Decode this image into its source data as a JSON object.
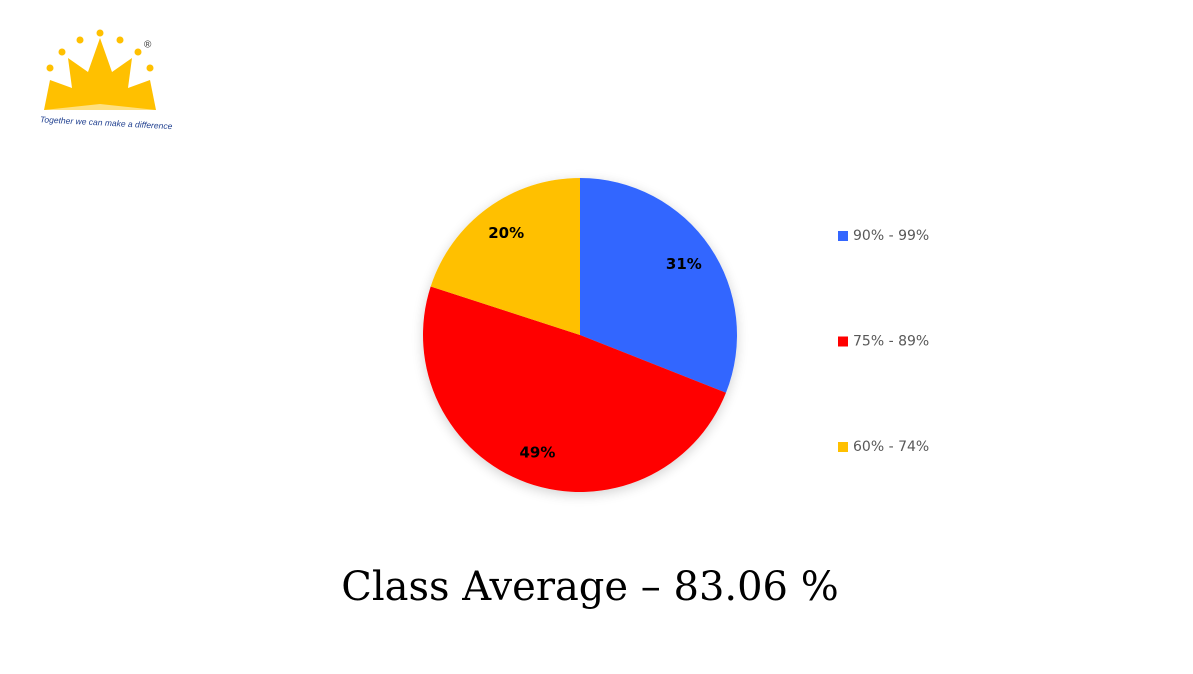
{
  "logo": {
    "mark": "®",
    "tagline": "Together we can make a difference"
  },
  "chart_data": {
    "type": "pie",
    "categories": [
      "90% - 99%",
      "75% - 89%",
      "60% - 74%"
    ],
    "values": [
      31,
      49,
      20
    ],
    "value_labels": [
      "31%",
      "49%",
      "20%"
    ],
    "colors": [
      "#3366ff",
      "#ff0000",
      "#ffc000"
    ],
    "legend": "right",
    "caption": "Class Average – 83.06 %"
  }
}
